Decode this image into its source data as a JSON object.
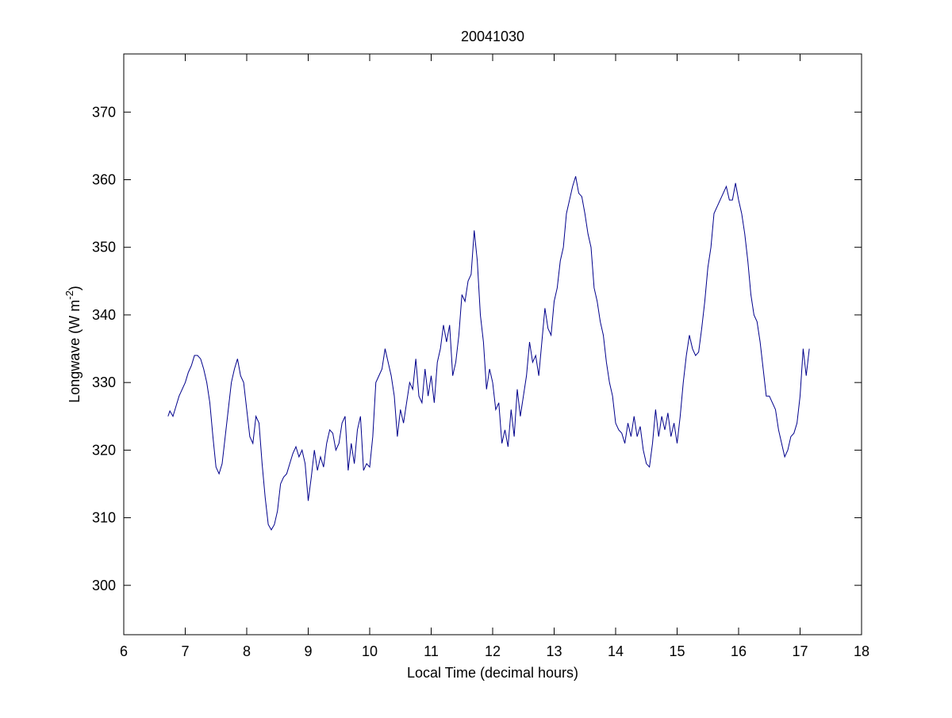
{
  "chart_data": {
    "type": "line",
    "title": "20041030",
    "xlabel": "Local Time (decimal hours)",
    "ylabel": [
      "Longwave (W m",
      "-2",
      ")"
    ],
    "xlim": [
      6,
      18
    ],
    "xticks": [
      6,
      7,
      8,
      9,
      10,
      11,
      12,
      13,
      14,
      15,
      16,
      17,
      18
    ],
    "ylim": [
      292.7,
      378.6
    ],
    "yticks": [
      300,
      310,
      320,
      330,
      340,
      350,
      360,
      370
    ],
    "series": [
      {
        "color": "#00008b",
        "x": [
          6.72,
          6.75,
          6.8,
          6.85,
          6.9,
          6.95,
          7.0,
          7.05,
          7.1,
          7.15,
          7.2,
          7.25,
          7.3,
          7.35,
          7.4,
          7.45,
          7.5,
          7.55,
          7.6,
          7.65,
          7.7,
          7.75,
          7.8,
          7.85,
          7.9,
          7.95,
          8.0,
          8.05,
          8.1,
          8.15,
          8.2,
          8.25,
          8.3,
          8.35,
          8.4,
          8.45,
          8.5,
          8.55,
          8.6,
          8.65,
          8.7,
          8.75,
          8.8,
          8.85,
          8.9,
          8.95,
          9.0,
          9.05,
          9.1,
          9.15,
          9.2,
          9.25,
          9.3,
          9.35,
          9.4,
          9.45,
          9.5,
          9.55,
          9.6,
          9.65,
          9.7,
          9.75,
          9.8,
          9.85,
          9.9,
          9.95,
          10.0,
          10.05,
          10.1,
          10.15,
          10.2,
          10.25,
          10.3,
          10.35,
          10.4,
          10.45,
          10.5,
          10.55,
          10.6,
          10.65,
          10.7,
          10.75,
          10.8,
          10.85,
          10.9,
          10.95,
          11.0,
          11.05,
          11.1,
          11.15,
          11.2,
          11.25,
          11.3,
          11.35,
          11.4,
          11.45,
          11.5,
          11.55,
          11.6,
          11.65,
          11.7,
          11.75,
          11.8,
          11.85,
          11.9,
          11.95,
          12.0,
          12.05,
          12.1,
          12.15,
          12.2,
          12.25,
          12.3,
          12.35,
          12.4,
          12.45,
          12.5,
          12.55,
          12.6,
          12.65,
          12.7,
          12.75,
          12.8,
          12.85,
          12.9,
          12.95,
          13.0,
          13.05,
          13.1,
          13.15,
          13.2,
          13.25,
          13.3,
          13.35,
          13.4,
          13.45,
          13.5,
          13.55,
          13.6,
          13.65,
          13.7,
          13.75,
          13.8,
          13.85,
          13.9,
          13.95,
          14.0,
          14.05,
          14.1,
          14.15,
          14.2,
          14.25,
          14.3,
          14.35,
          14.4,
          14.45,
          14.5,
          14.55,
          14.6,
          14.65,
          14.7,
          14.75,
          14.8,
          14.85,
          14.9,
          14.95,
          15.0,
          15.05,
          15.1,
          15.15,
          15.2,
          15.25,
          15.3,
          15.35,
          15.4,
          15.45,
          15.5,
          15.55,
          15.6,
          15.65,
          15.7,
          15.75,
          15.8,
          15.85,
          15.9,
          15.95,
          16.0,
          16.05,
          16.1,
          16.15,
          16.2,
          16.25,
          16.3,
          16.35,
          16.4,
          16.45,
          16.5,
          16.55,
          16.6,
          16.65,
          16.7,
          16.75,
          16.8,
          16.85,
          16.9,
          16.95,
          17.0,
          17.05,
          17.1,
          17.15
        ],
        "values": [
          325,
          325.8,
          325,
          326.5,
          328,
          329,
          330,
          331.5,
          332.5,
          334,
          334,
          333.5,
          332,
          330,
          327,
          322,
          317.5,
          316.5,
          318,
          322,
          326,
          330,
          332,
          333.5,
          331,
          330,
          326,
          322,
          321,
          325,
          324,
          318,
          313,
          309,
          308.2,
          309,
          311,
          315,
          316,
          316.5,
          318,
          319.5,
          320.5,
          319,
          320,
          318,
          312.5,
          316,
          320,
          317,
          319,
          317.5,
          321,
          323,
          322.5,
          320,
          321,
          324,
          325,
          317,
          321,
          318,
          323,
          325,
          317,
          318,
          317.5,
          322,
          330,
          331,
          332,
          335,
          333,
          331,
          328,
          322,
          326,
          324,
          327,
          330,
          329,
          333.5,
          328,
          327,
          332,
          328,
          331,
          327,
          333,
          335,
          338.5,
          336,
          338.5,
          331,
          333,
          337,
          343,
          342,
          345,
          346,
          352.5,
          348,
          340,
          336,
          329,
          332,
          330,
          326,
          327,
          321,
          323,
          320.5,
          326,
          322,
          329,
          325,
          328,
          331,
          336,
          333,
          334,
          331,
          336,
          341,
          338,
          337,
          342,
          344,
          348,
          350,
          355,
          357,
          359,
          360.5,
          358,
          357.5,
          355,
          352,
          350,
          344,
          342,
          339,
          337,
          333,
          330,
          328,
          324,
          323,
          322.5,
          321,
          324,
          322,
          325,
          322,
          323.5,
          320,
          318,
          317.5,
          321,
          326,
          322,
          325,
          323,
          325.5,
          322,
          324,
          321,
          325,
          330,
          334,
          337,
          335,
          334,
          334.5,
          338,
          342,
          347,
          350,
          355,
          356,
          357,
          358,
          359,
          357,
          357,
          359.5,
          357,
          355,
          352,
          348,
          343,
          340,
          339,
          336,
          332,
          328,
          328,
          327,
          326,
          323,
          321,
          319,
          320,
          322,
          322.5,
          324,
          328,
          335,
          331,
          335
        ]
      }
    ]
  }
}
